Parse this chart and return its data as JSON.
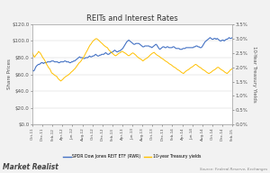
{
  "title": "REITs and Interest Rates",
  "ylabel_left": "Share Prices",
  "ylabel_right": "10-Year Treasury Yields",
  "ylim_left": [
    0,
    120
  ],
  "ylim_right": [
    0.0,
    3.5
  ],
  "yticks_left": [
    0,
    20,
    40,
    60,
    80,
    100,
    120
  ],
  "ytick_labels_left": [
    "$0.0",
    "$20.0",
    "$40.0",
    "$60.0",
    "$80.0",
    "$100.0",
    "$120.0"
  ],
  "yticks_right": [
    0.0,
    0.5,
    1.0,
    1.5,
    2.0,
    2.5,
    3.0,
    3.5
  ],
  "ytick_labels_right": [
    "0.0%",
    "0.5%",
    "1.0%",
    "1.5%",
    "2.0%",
    "2.5%",
    "3.0%",
    "3.5%"
  ],
  "line_color_reit": "#4472c4",
  "line_color_treasury": "#ffc000",
  "legend_labels": [
    "SPDR Dow Jones REIT ETF (RWR)",
    "10-year Treasury yields"
  ],
  "source_text": "Source: Federal Reserve, Exchanges",
  "watermark": "Market Realist",
  "background_color": "#f2f2f2",
  "plot_bg_color": "#ffffff",
  "x_labels": [
    "Oct-11",
    "Dec-11",
    "Feb-12",
    "Apr-12",
    "Jun-12",
    "Aug-12",
    "Oct-12",
    "Dec-12",
    "Feb-13",
    "Apr-13",
    "Jun-13",
    "Aug-13",
    "Oct-13",
    "Dec-13",
    "Feb-14",
    "Apr-14",
    "Jun-14",
    "Aug-14",
    "Oct-14",
    "Dec-14",
    "Feb-15"
  ],
  "reit_values": [
    65,
    64,
    65,
    68,
    70,
    71,
    72,
    72,
    73,
    74,
    74,
    73,
    74,
    74,
    74,
    75,
    75,
    75,
    75,
    76,
    76,
    76,
    75,
    75,
    75,
    75,
    74,
    74,
    75,
    75,
    75,
    75,
    76,
    76,
    75,
    75,
    75,
    74,
    74,
    75,
    75,
    76,
    76,
    77,
    78,
    79,
    80,
    81,
    80,
    80,
    80,
    79,
    79,
    80,
    80,
    80,
    81,
    82,
    81,
    81,
    82,
    82,
    83,
    84,
    83,
    82,
    82,
    83,
    83,
    84,
    84,
    84,
    85,
    86,
    85,
    84,
    84,
    85,
    86,
    86,
    87,
    88,
    89,
    88,
    87,
    87,
    88,
    88,
    89,
    90,
    91,
    93,
    95,
    97,
    99,
    100,
    101,
    100,
    99,
    98,
    97,
    96,
    96,
    97,
    97,
    97,
    97,
    96,
    95,
    94,
    93,
    93,
    94,
    94,
    94,
    94,
    94,
    93,
    93,
    92,
    93,
    94,
    95,
    96,
    95,
    93,
    91,
    90,
    91,
    92,
    93,
    93,
    92,
    92,
    93,
    93,
    92,
    92,
    92,
    92,
    93,
    93,
    92,
    91,
    91,
    91,
    91,
    90,
    90,
    90,
    91,
    91,
    91,
    92,
    92,
    92,
    92,
    92,
    92,
    92,
    92,
    93,
    93,
    94,
    94,
    93,
    93,
    92,
    92,
    93,
    95,
    97,
    99,
    100,
    101,
    102,
    103,
    104,
    103,
    102,
    102,
    103,
    103,
    102,
    103,
    102,
    101,
    100,
    100,
    101,
    101,
    100,
    101,
    102,
    102,
    103,
    104,
    103,
    103,
    104
  ],
  "treasury_values": [
    2.5,
    2.42,
    2.35,
    2.4,
    2.45,
    2.48,
    2.55,
    2.52,
    2.48,
    2.42,
    2.35,
    2.3,
    2.25,
    2.18,
    2.1,
    2.05,
    1.98,
    1.95,
    1.88,
    1.8,
    1.78,
    1.75,
    1.72,
    1.7,
    1.68,
    1.62,
    1.58,
    1.55,
    1.52,
    1.55,
    1.58,
    1.62,
    1.65,
    1.68,
    1.7,
    1.72,
    1.75,
    1.78,
    1.82,
    1.85,
    1.88,
    1.92,
    1.95,
    2.0,
    2.05,
    2.1,
    2.15,
    2.18,
    2.22,
    2.28,
    2.32,
    2.38,
    2.45,
    2.52,
    2.58,
    2.65,
    2.72,
    2.78,
    2.82,
    2.88,
    2.92,
    2.95,
    2.98,
    3.0,
    2.98,
    2.95,
    2.92,
    2.88,
    2.85,
    2.82,
    2.78,
    2.75,
    2.72,
    2.7,
    2.68,
    2.62,
    2.58,
    2.55,
    2.52,
    2.48,
    2.45,
    2.42,
    2.4,
    2.42,
    2.45,
    2.48,
    2.5,
    2.52,
    2.55,
    2.55,
    2.52,
    2.5,
    2.48,
    2.45,
    2.42,
    2.4,
    2.42,
    2.45,
    2.48,
    2.5,
    2.48,
    2.45,
    2.42,
    2.38,
    2.35,
    2.32,
    2.3,
    2.28,
    2.25,
    2.22,
    2.25,
    2.28,
    2.3,
    2.32,
    2.35,
    2.38,
    2.42,
    2.45,
    2.48,
    2.5,
    2.52,
    2.48,
    2.45,
    2.42,
    2.4,
    2.38,
    2.35,
    2.32,
    2.3,
    2.28,
    2.25,
    2.22,
    2.2,
    2.18,
    2.15,
    2.12,
    2.1,
    2.08,
    2.05,
    2.02,
    2.0,
    1.98,
    1.95,
    1.92,
    1.9,
    1.88,
    1.85,
    1.82,
    1.8,
    1.78,
    1.82,
    1.85,
    1.88,
    1.9,
    1.92,
    1.95,
    1.98,
    2.0,
    2.02,
    2.05,
    2.08,
    2.1,
    2.08,
    2.05,
    2.02,
    2.0,
    1.98,
    1.95,
    1.92,
    1.9,
    1.88,
    1.85,
    1.82,
    1.8,
    1.78,
    1.8,
    1.82,
    1.85,
    1.88,
    1.9,
    1.92,
    1.95,
    1.98,
    2.0,
    1.98,
    1.95,
    1.92,
    1.9,
    1.88,
    1.85,
    1.82,
    1.8,
    1.78,
    1.82,
    1.85,
    1.9,
    1.92,
    1.95
  ]
}
